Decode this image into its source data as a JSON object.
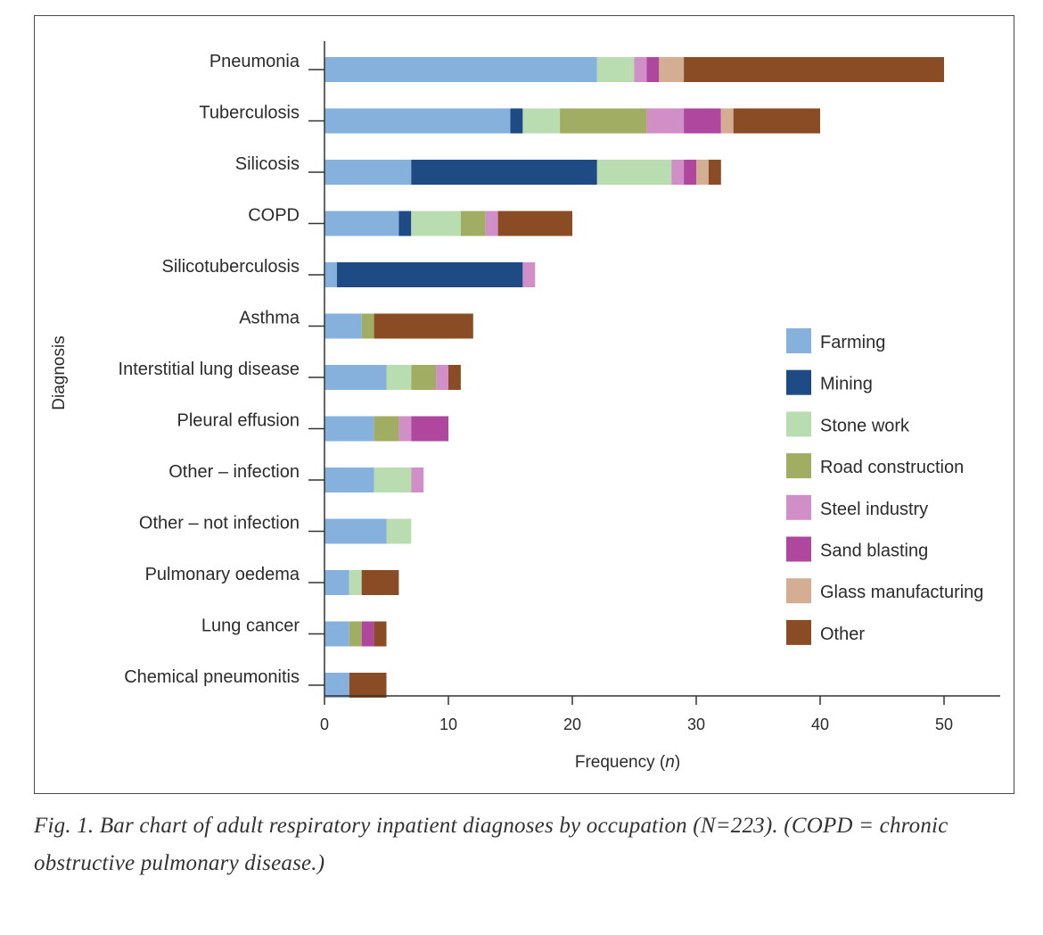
{
  "chart_data": {
    "type": "bar",
    "orientation": "horizontal",
    "stacked": true,
    "ylabel": "Diagnosis",
    "xlabel_main": "Frequency (",
    "xlabel_var": "n",
    "xlabel_end": ")",
    "xlim": [
      0,
      55
    ],
    "xticks": [
      0,
      10,
      20,
      30,
      40,
      50
    ],
    "grid": false,
    "legend_position": "right",
    "categories": [
      "Pneumonia",
      "Tuberculosis",
      "Silicosis",
      "COPD",
      "Silicotuberculosis",
      "Asthma",
      "Interstitial lung disease",
      "Pleural effusion",
      "Other – infection",
      "Other – not infection",
      "Pulmonary oedema",
      "Lung cancer",
      "Chemical pneumonitis"
    ],
    "series": [
      {
        "name": "Farming",
        "color": "#87b1dd",
        "values": [
          22,
          15,
          7,
          6,
          1,
          3,
          5,
          4,
          4,
          5,
          2,
          2,
          2
        ]
      },
      {
        "name": "Mining",
        "color": "#1f4b85",
        "values": [
          0,
          1,
          15,
          1,
          15,
          0,
          0,
          0,
          0,
          0,
          0,
          0,
          0
        ]
      },
      {
        "name": "Stone work",
        "color": "#b9ddb0",
        "values": [
          3,
          3,
          6,
          4,
          0,
          0,
          2,
          0,
          3,
          2,
          1,
          0,
          0
        ]
      },
      {
        "name": "Road construction",
        "color": "#a2ad64",
        "values": [
          0,
          7,
          0,
          2,
          0,
          1,
          2,
          2,
          0,
          0,
          0,
          1,
          0
        ]
      },
      {
        "name": "Steel industry",
        "color": "#d08fc6",
        "values": [
          1,
          3,
          1,
          1,
          1,
          0,
          1,
          1,
          1,
          0,
          0,
          0,
          0
        ]
      },
      {
        "name": "Sand blasting",
        "color": "#b0479f",
        "values": [
          1,
          3,
          1,
          0,
          0,
          0,
          0,
          3,
          0,
          0,
          0,
          1,
          0
        ]
      },
      {
        "name": "Glass manufacturing",
        "color": "#d4ae92",
        "values": [
          2,
          1,
          1,
          0,
          0,
          0,
          0,
          0,
          0,
          0,
          0,
          0,
          0
        ]
      },
      {
        "name": "Other",
        "color": "#8a4c25",
        "values": [
          21,
          7,
          1,
          6,
          0,
          8,
          1,
          0,
          0,
          0,
          3,
          1,
          3
        ]
      }
    ]
  },
  "caption": {
    "text": "Fig. 1. Bar chart of adult respiratory inpatient diagnoses by occupation (N=223). (COPD = chronic obstructive pulmonary disease.)"
  }
}
